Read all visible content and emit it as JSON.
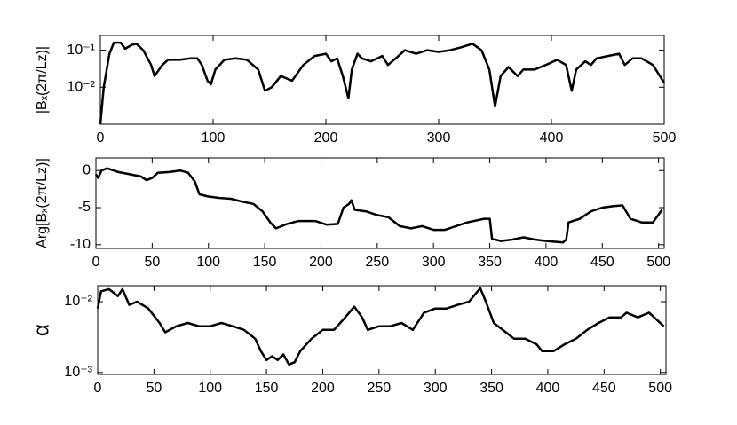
{
  "chart_data": [
    {
      "type": "line",
      "ylabel": "|Bₓ(2π/Lz)|",
      "log_y": true,
      "color": "#000000",
      "xlim": [
        0,
        500
      ],
      "xticks": [
        0,
        100,
        200,
        300,
        400,
        500
      ],
      "ylim": [
        0.001,
        0.25
      ],
      "yticks": [
        {
          "value": 0.01,
          "label": "10⁻²"
        },
        {
          "value": 0.1,
          "label": "10⁻¹"
        }
      ],
      "x": [
        0,
        3,
        8,
        12,
        18,
        22,
        28,
        32,
        38,
        45,
        48,
        55,
        60,
        70,
        80,
        86,
        90,
        95,
        98,
        102,
        110,
        120,
        130,
        140,
        146,
        152,
        160,
        170,
        180,
        190,
        200,
        205,
        210,
        215,
        220,
        223,
        228,
        232,
        240,
        250,
        255,
        262,
        270,
        280,
        290,
        300,
        310,
        320,
        330,
        338,
        345,
        350,
        355,
        362,
        370,
        375,
        385,
        395,
        405,
        413,
        418,
        422,
        430,
        435,
        440,
        450,
        460,
        465,
        472,
        480,
        490,
        500
      ],
      "values": [
        0.001,
        0.01,
        0.08,
        0.16,
        0.16,
        0.11,
        0.14,
        0.15,
        0.1,
        0.04,
        0.02,
        0.04,
        0.055,
        0.055,
        0.06,
        0.06,
        0.04,
        0.015,
        0.012,
        0.03,
        0.055,
        0.06,
        0.055,
        0.03,
        0.008,
        0.01,
        0.02,
        0.015,
        0.04,
        0.07,
        0.08,
        0.05,
        0.06,
        0.02,
        0.005,
        0.03,
        0.08,
        0.06,
        0.05,
        0.07,
        0.04,
        0.06,
        0.1,
        0.08,
        0.1,
        0.09,
        0.1,
        0.12,
        0.15,
        0.1,
        0.03,
        0.003,
        0.02,
        0.035,
        0.02,
        0.03,
        0.03,
        0.04,
        0.055,
        0.04,
        0.008,
        0.03,
        0.05,
        0.04,
        0.06,
        0.07,
        0.08,
        0.04,
        0.06,
        0.06,
        0.04,
        0.013
      ]
    },
    {
      "type": "line",
      "ylabel": "Arg[Bₓ(2π/Lz)]",
      "log_y": false,
      "color": "#000000",
      "xlim": [
        0,
        505
      ],
      "xticks": [
        0,
        50,
        100,
        150,
        200,
        250,
        300,
        350,
        400,
        450,
        500
      ],
      "ylim": [
        -10.5,
        1.7
      ],
      "yticks": [
        -10,
        -5,
        0
      ],
      "x": [
        0,
        2,
        5,
        10,
        20,
        30,
        40,
        45,
        50,
        55,
        65,
        75,
        82,
        88,
        92,
        100,
        110,
        120,
        130,
        140,
        148,
        155,
        160,
        170,
        180,
        195,
        205,
        215,
        220,
        225,
        227,
        230,
        240,
        250,
        260,
        270,
        280,
        290,
        300,
        310,
        320,
        330,
        345,
        350,
        352,
        360,
        370,
        380,
        390,
        400,
        415,
        418,
        420,
        430,
        440,
        450,
        460,
        468,
        475,
        485,
        495,
        503
      ],
      "values": [
        -0.5,
        -1,
        0,
        0.3,
        -0.2,
        -0.5,
        -0.8,
        -1.3,
        -1,
        -0.3,
        -0.2,
        0,
        -0.3,
        -1.5,
        -3.2,
        -3.5,
        -3.7,
        -3.8,
        -4.2,
        -4.5,
        -5.5,
        -7,
        -7.8,
        -7.2,
        -6.8,
        -6.8,
        -7.3,
        -7.2,
        -5,
        -4.5,
        -4,
        -5.3,
        -5.5,
        -6,
        -6.3,
        -7.5,
        -7.8,
        -7.5,
        -8,
        -8,
        -7.5,
        -7,
        -6.5,
        -6.5,
        -9.2,
        -9.5,
        -9.3,
        -9,
        -9.3,
        -9.5,
        -9.7,
        -9.3,
        -7,
        -6.5,
        -5.5,
        -5,
        -4.8,
        -4.7,
        -6.5,
        -7,
        -7,
        -5.3
      ]
    },
    {
      "type": "line",
      "ylabel": "α",
      "log_y": true,
      "color": "#000000",
      "xlim": [
        0,
        505
      ],
      "xticks": [
        0,
        50,
        100,
        150,
        200,
        250,
        300,
        350,
        400,
        450,
        500
      ],
      "ylim": [
        0.00094,
        0.0168
      ],
      "yticks": [
        {
          "value": 0.001,
          "label": "10⁻³"
        },
        {
          "value": 0.01,
          "label": "10⁻²"
        }
      ],
      "x": [
        0,
        3,
        10,
        18,
        22,
        28,
        35,
        45,
        55,
        60,
        70,
        80,
        90,
        100,
        110,
        120,
        130,
        140,
        145,
        150,
        155,
        160,
        165,
        170,
        175,
        180,
        190,
        200,
        210,
        220,
        228,
        235,
        240,
        250,
        260,
        270,
        280,
        290,
        300,
        310,
        320,
        330,
        340,
        345,
        352,
        360,
        370,
        380,
        390,
        395,
        405,
        415,
        425,
        435,
        445,
        455,
        465,
        470,
        480,
        490,
        503
      ],
      "values": [
        0.008,
        0.014,
        0.015,
        0.012,
        0.015,
        0.009,
        0.01,
        0.008,
        0.005,
        0.0037,
        0.0045,
        0.005,
        0.0045,
        0.0045,
        0.005,
        0.0045,
        0.004,
        0.003,
        0.002,
        0.0015,
        0.0017,
        0.0015,
        0.0018,
        0.0013,
        0.0014,
        0.002,
        0.003,
        0.004,
        0.004,
        0.006,
        0.0085,
        0.006,
        0.004,
        0.0045,
        0.0045,
        0.005,
        0.004,
        0.007,
        0.008,
        0.008,
        0.009,
        0.01,
        0.0155,
        0.01,
        0.005,
        0.004,
        0.003,
        0.003,
        0.0025,
        0.002,
        0.002,
        0.0025,
        0.003,
        0.004,
        0.005,
        0.006,
        0.006,
        0.007,
        0.006,
        0.007,
        0.0045
      ]
    }
  ]
}
